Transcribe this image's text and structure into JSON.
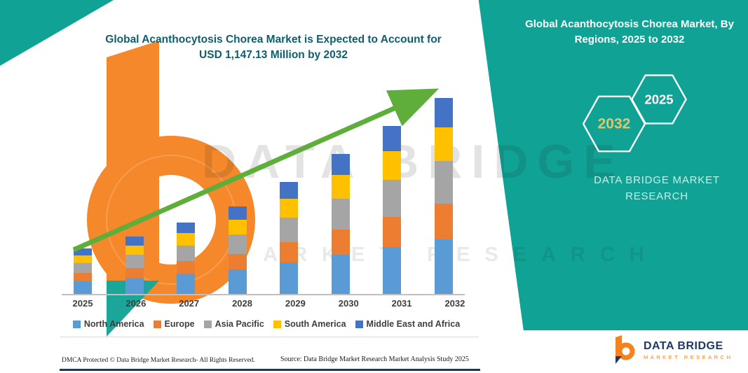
{
  "colors": {
    "teal": "#0FA295",
    "title_text": "#0F5E6E",
    "arrow_green": "#5FAE3B",
    "axis_gray": "#BFBFBF",
    "label_gray": "#3F3F3F",
    "brand_navy": "#1F3864",
    "brand_orange": "#F58220"
  },
  "title": {
    "line1": "Global Acanthocytosis Chorea Market is Expected to Account for",
    "line2": "USD 1,147.13 Million by 2032"
  },
  "right_panel": {
    "heading": "Global Acanthocytosis Chorea Market, By Regions, 2025 to 2032",
    "hexagons": [
      {
        "label": "2032",
        "text_color": "#E3C567"
      },
      {
        "label": "2025",
        "text_color": "#FFFFFF"
      }
    ],
    "brand_text_line1": "DATA BRIDGE MARKET",
    "brand_text_line2": "RESEARCH"
  },
  "watermark": {
    "line1": "DATA BRIDGE",
    "line2": "MARKET RESEARCH"
  },
  "chart_data": {
    "type": "bar",
    "stacked": true,
    "title": "Global Acanthocytosis Chorea Market, By Regions, 2025 to 2032",
    "unit": "USD Million",
    "categories": [
      "2025",
      "2026",
      "2027",
      "2028",
      "2029",
      "2030",
      "2031",
      "2032"
    ],
    "series": [
      {
        "name": "North America",
        "color": "#5B9BD5",
        "values": [
          74,
          94,
          117,
          143,
          184,
          229,
          275,
          321
        ]
      },
      {
        "name": "Europe",
        "color": "#ED7D31",
        "values": [
          48,
          60,
          75,
          92,
          118,
          147,
          177,
          207
        ]
      },
      {
        "name": "Asia Pacific",
        "color": "#A5A5A5",
        "values": [
          59,
          74,
          92,
          113,
          144,
          180,
          216,
          252
        ]
      },
      {
        "name": "South America",
        "color": "#FFC000",
        "values": [
          45,
          57,
          71,
          87,
          112,
          139,
          167,
          195
        ]
      },
      {
        "name": "Middle East and Africa",
        "color": "#4472C4",
        "values": [
          40,
          51,
          63,
          77,
          98,
          124,
          148,
          172
        ]
      }
    ],
    "totals": [
      266,
      336,
      418,
      512,
      656,
      819,
      983,
      1147.13
    ],
    "ylim": [
      0,
      1200
    ],
    "grid": false,
    "legend_position": "bottom",
    "annotation": "upward green trend arrow"
  },
  "footer": {
    "dmca": "DMCA Protected © Data Bridge Market Research-  All Rights Reserved.",
    "source": "Source: Data Bridge Market Research  Market Analysis Study 2025"
  },
  "logo": {
    "line1": "DATA BRIDGE",
    "line2": "MARKET RESEARCH"
  }
}
